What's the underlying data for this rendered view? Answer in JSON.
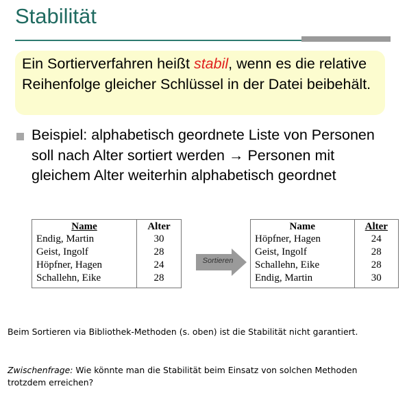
{
  "slide": {
    "title": "Stabilität",
    "definition": {
      "before": "Ein Sortierverfahren heißt ",
      "highlight": "stabil",
      "after": ", wenn es die relative Reihenfolge gleicher Schlüssel in der Datei beibehält."
    },
    "bullet": "Beispiel: alphabetisch geordnete Liste von Personen soll nach Alter sortiert werden → Personen mit gleichem Alter weiterhin alphabetisch geordnet",
    "table_before": {
      "headers": [
        "Name",
        "Alter"
      ],
      "rows": [
        [
          "Endig, Martin",
          "30"
        ],
        [
          "Geist, Ingolf",
          "28"
        ],
        [
          "Höpfner, Hagen",
          "24"
        ],
        [
          "Schallehn, Eike",
          "28"
        ]
      ]
    },
    "arrow_label": "Sortieren",
    "table_after": {
      "headers": [
        "Name",
        "Alter"
      ],
      "rows": [
        [
          "Höpfner, Hagen",
          "24"
        ],
        [
          "Geist, Ingolf",
          "28"
        ],
        [
          "Schallehn, Eike",
          "28"
        ],
        [
          "Endig, Martin",
          "30"
        ]
      ]
    }
  },
  "notes": {
    "note1": "Beim Sortieren via Bibliothek-Methoden (s. oben) ist die Stabilität nicht garantiert.",
    "note2_label": "Zwischenfrage:",
    "note2_text": " Wie könnte man die Stabilität beim Einsatz von solchen Methoden trotzdem erreichen?"
  },
  "colors": {
    "title": "#1f6a60",
    "definition_bg": "#fcfccf",
    "highlight": "#e0201e",
    "bullet": "#a7a7a7",
    "arrow": "#9a9a9a"
  }
}
